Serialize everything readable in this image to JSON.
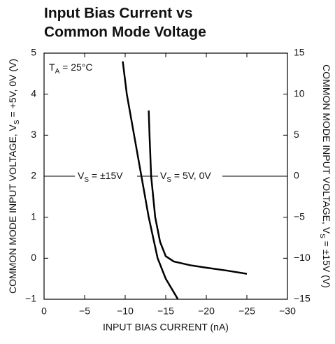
{
  "chart_data": {
    "type": "line",
    "title": [
      "Input Bias Current vs",
      "Common Mode Voltage"
    ],
    "xlabel": "INPUT BIAS CURRENT (nA)",
    "ylabel": {
      "pre": "COMMON MODE INPUT VOLTAGE, V",
      "sub": "S",
      "post": " = +5V, 0V (V)"
    },
    "y2label": {
      "pre": "COMMON MODE INPUT VOLTAGE, V",
      "sub": "S",
      "post": " = ±15V (V)"
    },
    "annotation": {
      "pre": "T",
      "sub": "A",
      "post": " = 25°C"
    },
    "xlim": [
      0,
      -30
    ],
    "xticks": [
      0,
      {
        "value": -5,
        "label": "−5"
      },
      {
        "value": -10,
        "label": "−10"
      },
      {
        "value": -15,
        "label": "−15"
      },
      {
        "value": -20,
        "label": "−20"
      },
      {
        "value": -25,
        "label": "−25"
      },
      {
        "value": -30,
        "label": "−30"
      }
    ],
    "ylim": [
      -1,
      5
    ],
    "yticks": [
      {
        "value": -1,
        "label": "−1"
      },
      0,
      1,
      2,
      3,
      4,
      5
    ],
    "y2lim": [
      -15,
      15
    ],
    "y2ticks": [
      {
        "value": -15,
        "label": "−15"
      },
      {
        "value": -10,
        "label": "−10"
      },
      {
        "value": -5,
        "label": "−5"
      },
      0,
      5,
      10,
      15
    ],
    "grid": false,
    "series": [
      {
        "label": {
          "pre": "V",
          "sub": "S",
          "post": " = ±15V"
        },
        "color": "#000000",
        "axis": "y2",
        "x": [
          -9.7,
          -10.2,
          -11.1,
          -12.0,
          -12.9,
          -14.0,
          -15.0,
          -16.5
        ],
        "values": [
          14,
          10,
          5,
          0,
          -5,
          -10,
          -12.5,
          -15
        ]
      },
      {
        "label": {
          "pre": "V",
          "sub": "S",
          "post": " = 5V, 0V"
        },
        "color": "#000000",
        "x": [
          -12.9,
          -13.0,
          -13.2,
          -13.7,
          -14.3,
          -15,
          -16,
          -18,
          -20,
          -22.5,
          -25
        ],
        "values": [
          3.6,
          3,
          2,
          1,
          0.4,
          0.05,
          -0.08,
          -0.17,
          -0.23,
          -0.3,
          -0.38
        ]
      }
    ]
  }
}
